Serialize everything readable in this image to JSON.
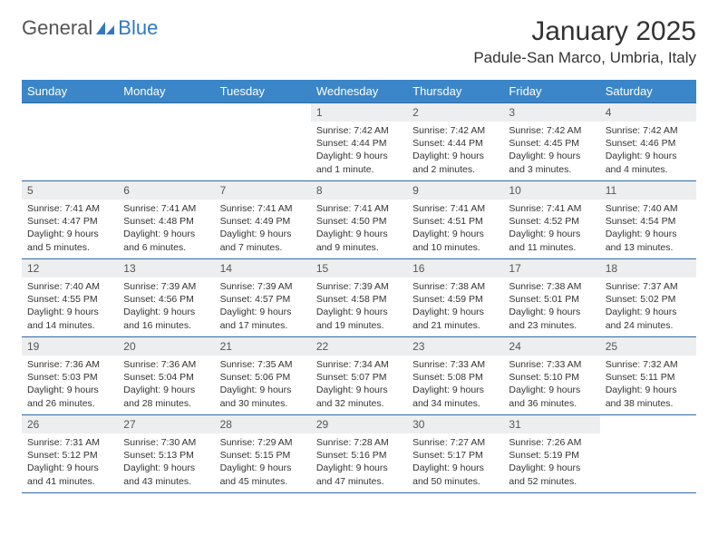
{
  "brand": {
    "part1": "General",
    "part2": "Blue"
  },
  "title": "January 2025",
  "location": "Padule-San Marco, Umbria, Italy",
  "colors": {
    "header_bg": "#3b86c8",
    "header_text": "#ffffff",
    "row_border": "#2f6aa3",
    "daynum_bg": "#eceeef",
    "brand_gray": "#555555",
    "brand_blue": "#2f79c2"
  },
  "weekdays": [
    "Sunday",
    "Monday",
    "Tuesday",
    "Wednesday",
    "Thursday",
    "Friday",
    "Saturday"
  ],
  "weeks": [
    [
      {
        "n": "",
        "sr": "",
        "ss": "",
        "dl": ""
      },
      {
        "n": "",
        "sr": "",
        "ss": "",
        "dl": ""
      },
      {
        "n": "",
        "sr": "",
        "ss": "",
        "dl": ""
      },
      {
        "n": "1",
        "sr": "7:42 AM",
        "ss": "4:44 PM",
        "dl": "9 hours and 1 minute."
      },
      {
        "n": "2",
        "sr": "7:42 AM",
        "ss": "4:44 PM",
        "dl": "9 hours and 2 minutes."
      },
      {
        "n": "3",
        "sr": "7:42 AM",
        "ss": "4:45 PM",
        "dl": "9 hours and 3 minutes."
      },
      {
        "n": "4",
        "sr": "7:42 AM",
        "ss": "4:46 PM",
        "dl": "9 hours and 4 minutes."
      }
    ],
    [
      {
        "n": "5",
        "sr": "7:41 AM",
        "ss": "4:47 PM",
        "dl": "9 hours and 5 minutes."
      },
      {
        "n": "6",
        "sr": "7:41 AM",
        "ss": "4:48 PM",
        "dl": "9 hours and 6 minutes."
      },
      {
        "n": "7",
        "sr": "7:41 AM",
        "ss": "4:49 PM",
        "dl": "9 hours and 7 minutes."
      },
      {
        "n": "8",
        "sr": "7:41 AM",
        "ss": "4:50 PM",
        "dl": "9 hours and 9 minutes."
      },
      {
        "n": "9",
        "sr": "7:41 AM",
        "ss": "4:51 PM",
        "dl": "9 hours and 10 minutes."
      },
      {
        "n": "10",
        "sr": "7:41 AM",
        "ss": "4:52 PM",
        "dl": "9 hours and 11 minutes."
      },
      {
        "n": "11",
        "sr": "7:40 AM",
        "ss": "4:54 PM",
        "dl": "9 hours and 13 minutes."
      }
    ],
    [
      {
        "n": "12",
        "sr": "7:40 AM",
        "ss": "4:55 PM",
        "dl": "9 hours and 14 minutes."
      },
      {
        "n": "13",
        "sr": "7:39 AM",
        "ss": "4:56 PM",
        "dl": "9 hours and 16 minutes."
      },
      {
        "n": "14",
        "sr": "7:39 AM",
        "ss": "4:57 PM",
        "dl": "9 hours and 17 minutes."
      },
      {
        "n": "15",
        "sr": "7:39 AM",
        "ss": "4:58 PM",
        "dl": "9 hours and 19 minutes."
      },
      {
        "n": "16",
        "sr": "7:38 AM",
        "ss": "4:59 PM",
        "dl": "9 hours and 21 minutes."
      },
      {
        "n": "17",
        "sr": "7:38 AM",
        "ss": "5:01 PM",
        "dl": "9 hours and 23 minutes."
      },
      {
        "n": "18",
        "sr": "7:37 AM",
        "ss": "5:02 PM",
        "dl": "9 hours and 24 minutes."
      }
    ],
    [
      {
        "n": "19",
        "sr": "7:36 AM",
        "ss": "5:03 PM",
        "dl": "9 hours and 26 minutes."
      },
      {
        "n": "20",
        "sr": "7:36 AM",
        "ss": "5:04 PM",
        "dl": "9 hours and 28 minutes."
      },
      {
        "n": "21",
        "sr": "7:35 AM",
        "ss": "5:06 PM",
        "dl": "9 hours and 30 minutes."
      },
      {
        "n": "22",
        "sr": "7:34 AM",
        "ss": "5:07 PM",
        "dl": "9 hours and 32 minutes."
      },
      {
        "n": "23",
        "sr": "7:33 AM",
        "ss": "5:08 PM",
        "dl": "9 hours and 34 minutes."
      },
      {
        "n": "24",
        "sr": "7:33 AM",
        "ss": "5:10 PM",
        "dl": "9 hours and 36 minutes."
      },
      {
        "n": "25",
        "sr": "7:32 AM",
        "ss": "5:11 PM",
        "dl": "9 hours and 38 minutes."
      }
    ],
    [
      {
        "n": "26",
        "sr": "7:31 AM",
        "ss": "5:12 PM",
        "dl": "9 hours and 41 minutes."
      },
      {
        "n": "27",
        "sr": "7:30 AM",
        "ss": "5:13 PM",
        "dl": "9 hours and 43 minutes."
      },
      {
        "n": "28",
        "sr": "7:29 AM",
        "ss": "5:15 PM",
        "dl": "9 hours and 45 minutes."
      },
      {
        "n": "29",
        "sr": "7:28 AM",
        "ss": "5:16 PM",
        "dl": "9 hours and 47 minutes."
      },
      {
        "n": "30",
        "sr": "7:27 AM",
        "ss": "5:17 PM",
        "dl": "9 hours and 50 minutes."
      },
      {
        "n": "31",
        "sr": "7:26 AM",
        "ss": "5:19 PM",
        "dl": "9 hours and 52 minutes."
      },
      {
        "n": "",
        "sr": "",
        "ss": "",
        "dl": ""
      }
    ]
  ],
  "labels": {
    "sunrise": "Sunrise: ",
    "sunset": "Sunset: ",
    "daylight": "Daylight: "
  }
}
